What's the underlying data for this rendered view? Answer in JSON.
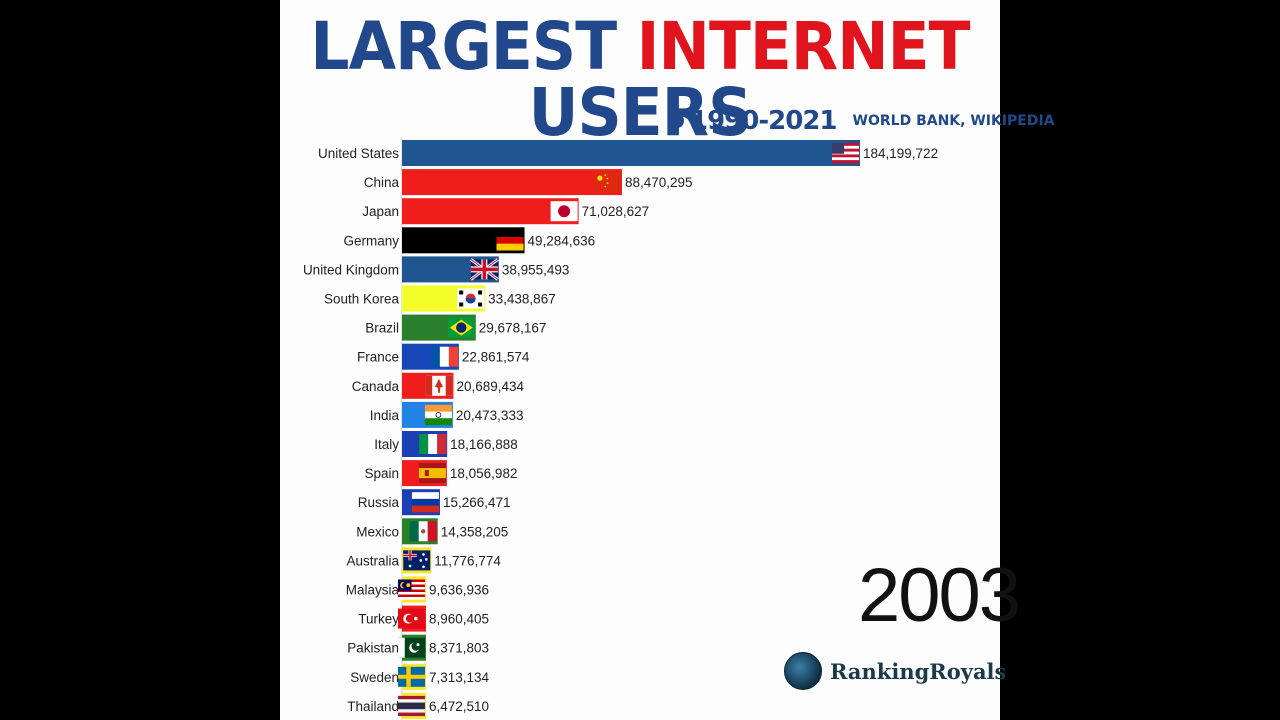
{
  "title": {
    "w1": "LARGEST",
    "w2": "INTERNET",
    "w3": "USERS"
  },
  "subtitle": {
    "years": "1990-2021",
    "source": "WORLD BANK, WIKIPEDIA"
  },
  "year": "2003",
  "brand": "RankingRoyals",
  "chart_data": {
    "type": "bar",
    "orientation": "horizontal",
    "categories": [
      "United States",
      "China",
      "Japan",
      "Germany",
      "United Kingdom",
      "South Korea",
      "Brazil",
      "France",
      "Canada",
      "India",
      "Italy",
      "Spain",
      "Russia",
      "Mexico",
      "Australia",
      "Malaysia",
      "Turkey",
      "Pakistan",
      "Sweden",
      "Thailand"
    ],
    "values": [
      184199722,
      88470295,
      71028627,
      49284636,
      38955493,
      33438867,
      29678167,
      22861574,
      20689434,
      20473333,
      18166888,
      18056982,
      15266471,
      14358205,
      11776774,
      9636936,
      8960405,
      8371803,
      7313134,
      6472510
    ],
    "value_labels": [
      "184,199,722",
      "88,470,295",
      "71,028,627",
      "49,284,636",
      "38,955,493",
      "33,438,867",
      "29,678,167",
      "22,861,574",
      "20,689,434",
      "20,473,333",
      "18,166,888",
      "18,056,982",
      "15,266,471",
      "14,358,205",
      "11,776,774",
      "9,636,936",
      "8,960,405",
      "8,371,803",
      "7,313,134",
      "6,472,510"
    ],
    "colors": [
      "#1f5690",
      "#f01d1d",
      "#f01d1d",
      "#000000",
      "#1f5690",
      "#f4fc2a",
      "#2a7f2a",
      "#1746b8",
      "#f01d1d",
      "#2183e4",
      "#1c3fb4",
      "#f01d1d",
      "#1c3fb4",
      "#2a7f2a",
      "#fbe62a",
      "#fbe62a",
      "#f01d1d",
      "#2a7f2a",
      "#fbe62a",
      "#fbe62a"
    ],
    "flags": [
      "flag-us",
      "flag-cn",
      "flag-jp",
      "flag-de",
      "flag-gb",
      "flag-kr",
      "flag-br",
      "flag-fr",
      "flag-ca",
      "flag-in",
      "flag-it",
      "flag-es",
      "flag-ru",
      "flag-mx",
      "flag-au",
      "flag-my",
      "flag-tr",
      "flag-pk",
      "flag-se",
      "flag-th"
    ]
  }
}
